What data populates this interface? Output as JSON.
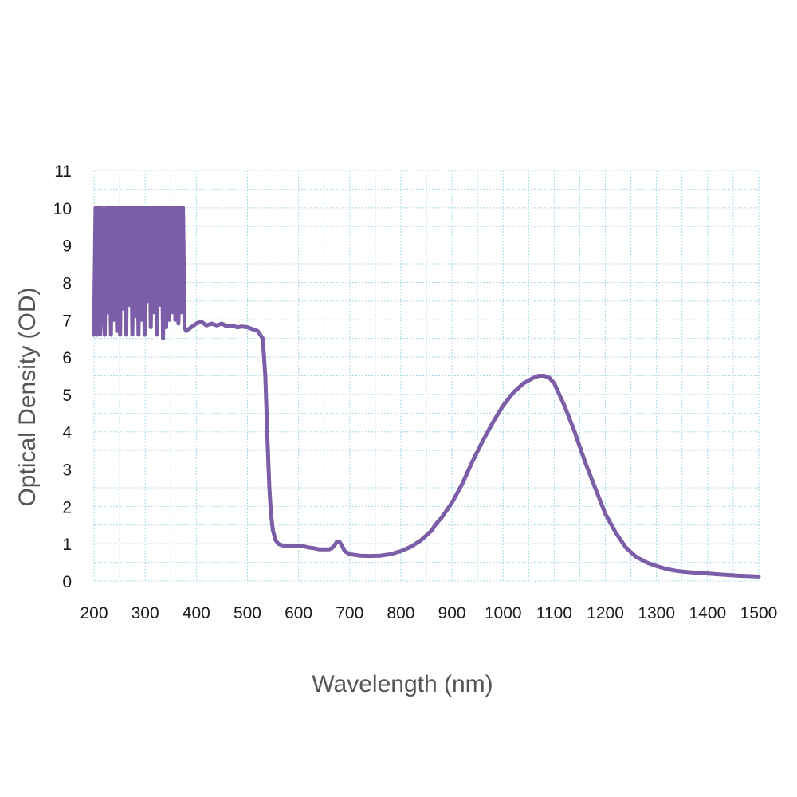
{
  "chart_data": {
    "type": "line",
    "title": "",
    "xlabel": "Wavelength (nm)",
    "ylabel": "Optical Density (OD)",
    "xlim": [
      200,
      1500
    ],
    "ylim": [
      0,
      11
    ],
    "x_ticks": [
      200,
      300,
      400,
      500,
      600,
      700,
      800,
      900,
      1000,
      1100,
      1200,
      1300,
      1400,
      1500
    ],
    "y_ticks": [
      0,
      1,
      2,
      3,
      4,
      5,
      6,
      7,
      8,
      9,
      10,
      11
    ],
    "grid": true,
    "legend": "none",
    "colors": {
      "series": "#7b5ea7",
      "grid": "#a8d8e8"
    },
    "series": [
      {
        "x": [
          200,
          203,
          206,
          209,
          212,
          215,
          218,
          221,
          224,
          227,
          230,
          233,
          236,
          239,
          242,
          245,
          248,
          251,
          254,
          257,
          260,
          263,
          266,
          269,
          272,
          275,
          278,
          281,
          284,
          287,
          290,
          293,
          296,
          299,
          302,
          305,
          308,
          311,
          314,
          317,
          320,
          323,
          326,
          329,
          332,
          335,
          338,
          341,
          344,
          347,
          350,
          353,
          356,
          359,
          362,
          365,
          368,
          371,
          374,
          377,
          380,
          385,
          390,
          400,
          410,
          420,
          430,
          440,
          450,
          460,
          470,
          480,
          490,
          500,
          510,
          520,
          530,
          535,
          540,
          543,
          546,
          550,
          555,
          560,
          565,
          570,
          580,
          590,
          600,
          610,
          620,
          630,
          640,
          650,
          660,
          665,
          670,
          675,
          680,
          685,
          690,
          700,
          720,
          740,
          760,
          780,
          800,
          820,
          840,
          860,
          870,
          880,
          900,
          920,
          940,
          960,
          980,
          1000,
          1020,
          1040,
          1060,
          1070,
          1080,
          1090,
          1100,
          1120,
          1140,
          1160,
          1180,
          1200,
          1220,
          1240,
          1260,
          1280,
          1300,
          1320,
          1340,
          1360,
          1380,
          1400,
          1420,
          1440,
          1460,
          1480,
          1500
        ],
        "y": [
          6.6,
          10,
          6.6,
          10,
          6.6,
          10,
          7.5,
          6.6,
          10,
          7.2,
          10,
          6.6,
          10,
          7.0,
          10,
          6.7,
          10,
          6.6,
          10,
          7.3,
          10,
          6.6,
          10,
          7.4,
          10,
          6.6,
          10,
          7.1,
          10,
          6.6,
          10,
          7.0,
          10,
          6.6,
          10,
          7.5,
          10,
          6.8,
          10,
          7.2,
          10,
          6.6,
          10,
          7.4,
          10,
          6.5,
          10,
          6.8,
          10,
          7.0,
          10,
          7.2,
          10,
          7.0,
          10,
          6.9,
          10,
          7.2,
          10,
          6.8,
          6.7,
          6.75,
          6.8,
          6.9,
          6.95,
          6.85,
          6.9,
          6.85,
          6.9,
          6.82,
          6.85,
          6.8,
          6.82,
          6.8,
          6.75,
          6.7,
          6.5,
          5.5,
          3.5,
          2.5,
          1.8,
          1.35,
          1.1,
          1.0,
          0.97,
          0.95,
          0.95,
          0.93,
          0.95,
          0.93,
          0.9,
          0.88,
          0.85,
          0.85,
          0.85,
          0.88,
          0.95,
          1.05,
          1.05,
          0.95,
          0.8,
          0.72,
          0.68,
          0.67,
          0.68,
          0.72,
          0.8,
          0.92,
          1.1,
          1.35,
          1.55,
          1.7,
          2.1,
          2.6,
          3.2,
          3.75,
          4.25,
          4.7,
          5.05,
          5.3,
          5.45,
          5.5,
          5.5,
          5.45,
          5.3,
          4.7,
          4.0,
          3.2,
          2.5,
          1.8,
          1.3,
          0.9,
          0.65,
          0.5,
          0.4,
          0.32,
          0.27,
          0.24,
          0.22,
          0.2,
          0.18,
          0.16,
          0.14,
          0.13,
          0.12
        ]
      }
    ]
  }
}
